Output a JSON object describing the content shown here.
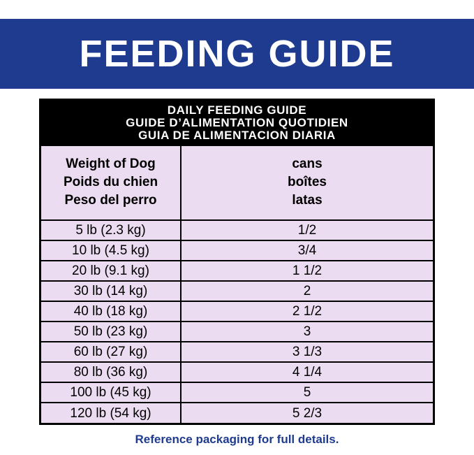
{
  "banner": {
    "title": "FEEDING GUIDE"
  },
  "table": {
    "title_lines": [
      "DAILY FEEDING GUIDE",
      "GUIDE D’ALIMENTATION QUOTIDIEN",
      "GUIA DE ALIMENTACION DIARIA"
    ],
    "weight_header": [
      "Weight of Dog",
      "Poids du chien",
      "Peso del perro"
    ],
    "amount_header": [
      "cans",
      "boîtes",
      "latas"
    ],
    "rows": [
      {
        "weight": "5 lb (2.3 kg)",
        "amount": "1/2"
      },
      {
        "weight": "10 lb (4.5 kg)",
        "amount": "3/4"
      },
      {
        "weight": "20 lb (9.1 kg)",
        "amount": "1 1/2"
      },
      {
        "weight": "30 lb (14 kg)",
        "amount": "2"
      },
      {
        "weight": "40 lb (18 kg)",
        "amount": "2 1/2"
      },
      {
        "weight": "50 lb (23 kg)",
        "amount": "3"
      },
      {
        "weight": "60 lb (27 kg)",
        "amount": "3 1/3"
      },
      {
        "weight": "80 lb (36 kg)",
        "amount": "4 1/4"
      },
      {
        "weight": "100 lb (45 kg)",
        "amount": "5"
      },
      {
        "weight": "120 lb (54 kg)",
        "amount": "5 2/3"
      }
    ]
  },
  "footer": {
    "note": "Reference packaging for full details."
  },
  "colors": {
    "brand_blue": "#1e3b8f",
    "table_bg": "#ecdcf1",
    "title_bar_bg": "#000000",
    "title_bar_text": "#ffffff",
    "border": "#000000"
  }
}
